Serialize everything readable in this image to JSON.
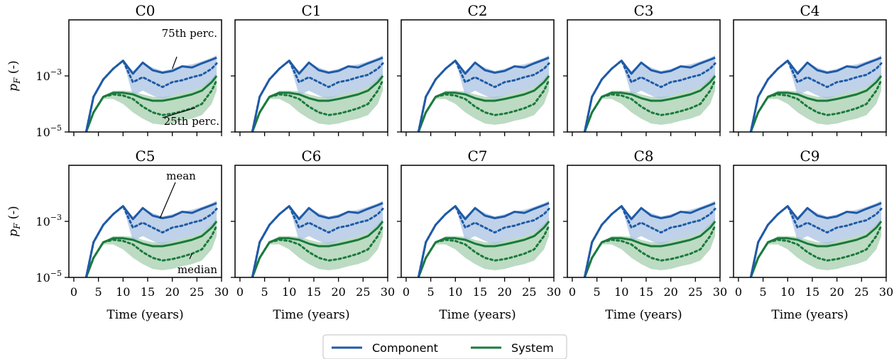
{
  "colors": {
    "component": "#1f5aa6",
    "component_band": "#a9c3e3",
    "system": "#1a7a3c",
    "system_band": "#a6cfae"
  },
  "axes_text": {
    "ylabel": "p_F (-)",
    "xlabel": "Time (years)",
    "ytick_hi": "10^-3",
    "ytick_lo": "10^-5",
    "xticks": [
      "0",
      "5",
      "10",
      "15",
      "20",
      "25",
      "30"
    ]
  },
  "annotations": {
    "p75": "75th perc.",
    "p25": "25th perc.",
    "mean": "mean",
    "median": "median"
  },
  "legend": {
    "component": "Component",
    "system": "System"
  },
  "chart_data": {
    "type": "line",
    "layout": "2x5 small multiples",
    "yscale": "log",
    "ylim": [
      1e-05,
      0.1
    ],
    "xlim": [
      -1,
      30
    ],
    "xlabel": "Time (years)",
    "ylabel": "p_F (-)",
    "legend_position": "bottom-center",
    "grid": false,
    "panels": [
      "C0",
      "C1",
      "C2",
      "C3",
      "C4",
      "C5",
      "C6",
      "C7",
      "C8",
      "C9"
    ],
    "x": [
      2.5,
      4,
      6,
      8,
      10,
      12,
      14,
      16,
      18,
      20,
      22,
      24,
      26,
      28,
      29
    ],
    "component_mean": [
      1e-05,
      0.00018,
      0.00075,
      0.0018,
      0.0035,
      0.0012,
      0.003,
      0.0016,
      0.0013,
      0.0015,
      0.0022,
      0.002,
      0.0028,
      0.0038,
      0.0045
    ],
    "component_median": [
      1e-05,
      0.00018,
      0.00075,
      0.0018,
      0.0035,
      0.0006,
      0.0009,
      0.0006,
      0.0004,
      0.0006,
      0.0007,
      0.0009,
      0.0011,
      0.0018,
      0.0028
    ],
    "component_p75": [
      1e-05,
      0.00018,
      0.00075,
      0.0018,
      0.0035,
      0.0015,
      0.003,
      0.002,
      0.0015,
      0.0018,
      0.0023,
      0.0026,
      0.0033,
      0.0045,
      0.0055
    ],
    "component_p25": [
      1e-05,
      0.00018,
      0.00075,
      0.0018,
      0.0035,
      0.0002,
      0.0003,
      0.0002,
      0.00015,
      0.0002,
      0.00025,
      0.0003,
      0.0004,
      0.0007,
      0.001
    ],
    "system_mean": [
      1e-05,
      5e-05,
      0.00018,
      0.00025,
      0.00025,
      0.00022,
      0.00016,
      0.00013,
      0.00013,
      0.00015,
      0.00018,
      0.00022,
      0.0003,
      0.0006,
      0.001
    ],
    "system_median": [
      1e-05,
      5e-05,
      0.00018,
      0.00022,
      0.0002,
      0.00015,
      8e-05,
      5e-05,
      4e-05,
      4.5e-05,
      5.5e-05,
      7e-05,
      0.0001,
      0.0003,
      0.0007
    ],
    "system_p75": [
      1e-05,
      5e-05,
      0.00018,
      0.0003,
      0.0003,
      0.00028,
      0.00022,
      0.00018,
      0.00018,
      0.0002,
      0.00025,
      0.0003,
      0.0004,
      0.0008,
      0.0013
    ],
    "system_p25": [
      1e-05,
      5e-05,
      0.00015,
      0.00015,
      0.0001,
      5e-05,
      3e-05,
      2e-05,
      1.8e-05,
      2e-05,
      2.5e-05,
      3e-05,
      4e-05,
      0.0001,
      0.0003
    ]
  }
}
